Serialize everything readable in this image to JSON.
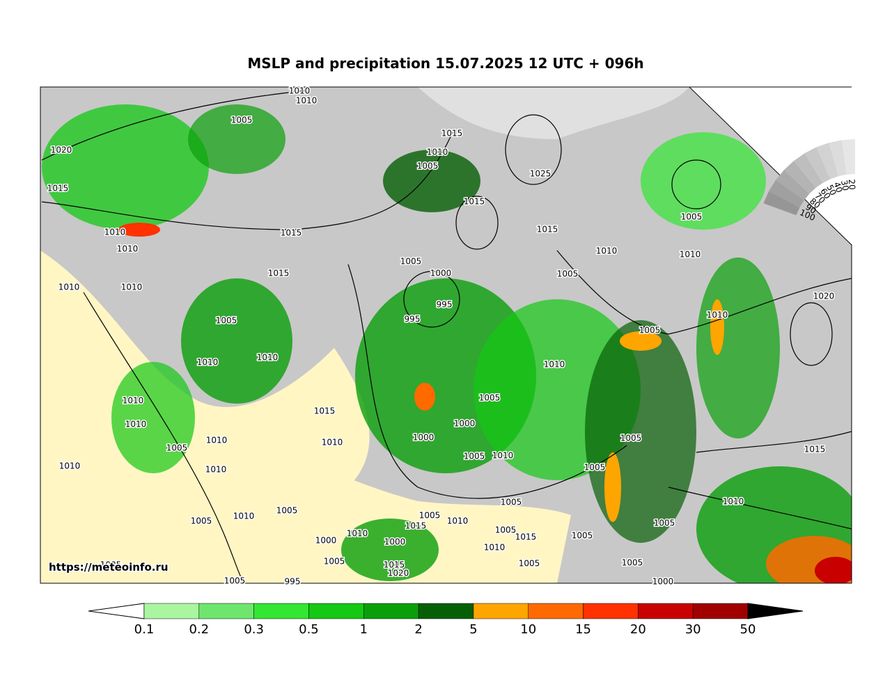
{
  "title": "MSLP and precipitation 15.07.2025 12 UTC + 096h",
  "watermark": "https://meteoinfo.ru",
  "isobar_labels": [
    "1010",
    "1010",
    "1005",
    "1020",
    "1015",
    "1010",
    "1010",
    "1015",
    "1015",
    "1010",
    "1010",
    "1005",
    "1010",
    "1010",
    "1010",
    "1010",
    "1005",
    "1010",
    "1010",
    "1010",
    "1005",
    "1010",
    "1005",
    "1015",
    "1010",
    "1015",
    "1010",
    "1005",
    "1025",
    "1015",
    "1015",
    "1005",
    "1000",
    "995",
    "995",
    "1005",
    "1010",
    "1005",
    "1010",
    "1020",
    "1010",
    "1005",
    "1010",
    "1005",
    "1000",
    "1000",
    "1005",
    "1010",
    "1005",
    "1005",
    "1015",
    "1010",
    "1005",
    "1005",
    "1005",
    "1015",
    "1005",
    "1010",
    "1005",
    "1005",
    "1010",
    "1015",
    "1005",
    "1010",
    "1000",
    "1000",
    "1005",
    "1015",
    "1020",
    "1005",
    "1005",
    "995",
    "1000"
  ],
  "cloud_scale": {
    "labels": [
      "100",
      "90",
      "80",
      "70",
      "60",
      "50",
      "40",
      "30",
      "20"
    ]
  },
  "colorbar": {
    "labels": [
      "0.1",
      "0.2",
      "0.3",
      "0.5",
      "1",
      "2",
      "5",
      "10",
      "15",
      "20",
      "30",
      "50"
    ],
    "colors": [
      "#aaf5a0",
      "#6ee66e",
      "#32e632",
      "#14c814",
      "#0a9f0a",
      "#055f05",
      "#ffa500",
      "#ff6a00",
      "#ff3200",
      "#c80000",
      "#a00000"
    ]
  }
}
